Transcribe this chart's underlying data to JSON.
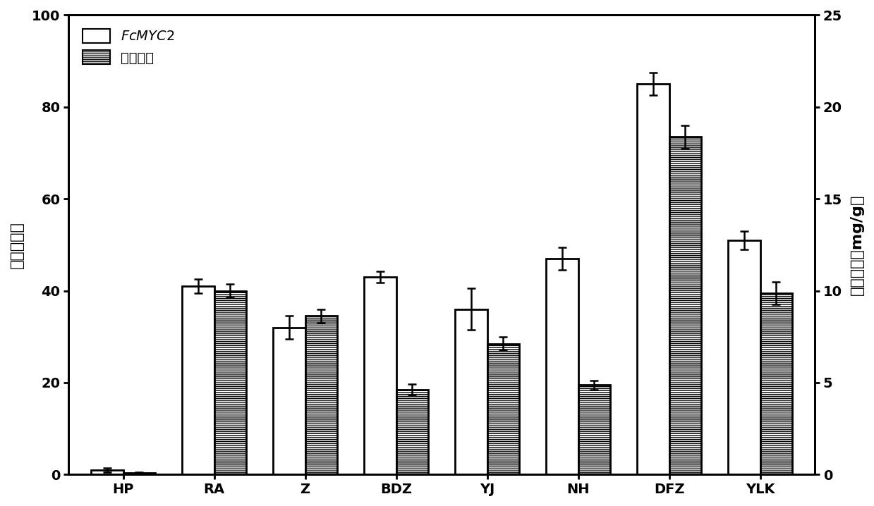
{
  "categories": [
    "HP",
    "RA",
    "Z",
    "BDZ",
    "YJ",
    "NH",
    "DFZ",
    "YLK"
  ],
  "fcmyc2_values": [
    1.0,
    41.0,
    32.0,
    43.0,
    36.0,
    47.0,
    85.0,
    51.0
  ],
  "fcmyc2_errors": [
    0.5,
    1.5,
    2.5,
    1.2,
    4.5,
    2.5,
    2.5,
    2.0
  ],
  "oil_values_right": [
    0.075,
    10.0,
    8.625,
    4.625,
    7.125,
    4.875,
    18.375,
    9.875
  ],
  "oil_errors_right": [
    0.05,
    0.375,
    0.375,
    0.3,
    0.375,
    0.25,
    0.625,
    0.625
  ],
  "ylabel_left": "相对表达量",
  "ylabel_right": "精油含量（mg/g）",
  "ylim_left": [
    0,
    100
  ],
  "ylim_right": [
    0,
    25
  ],
  "yticks_left": [
    0,
    20,
    40,
    60,
    80,
    100
  ],
  "yticks_right": [
    0,
    5,
    10,
    15,
    20,
    25
  ],
  "legend_label1": "$\\it{FcMYC2}$",
  "legend_label2": "精油含量",
  "bar_width": 0.35,
  "background_color": "#ffffff",
  "bar_edgecolor": "#000000",
  "label_fontsize": 16,
  "tick_fontsize": 14,
  "legend_fontsize": 14
}
